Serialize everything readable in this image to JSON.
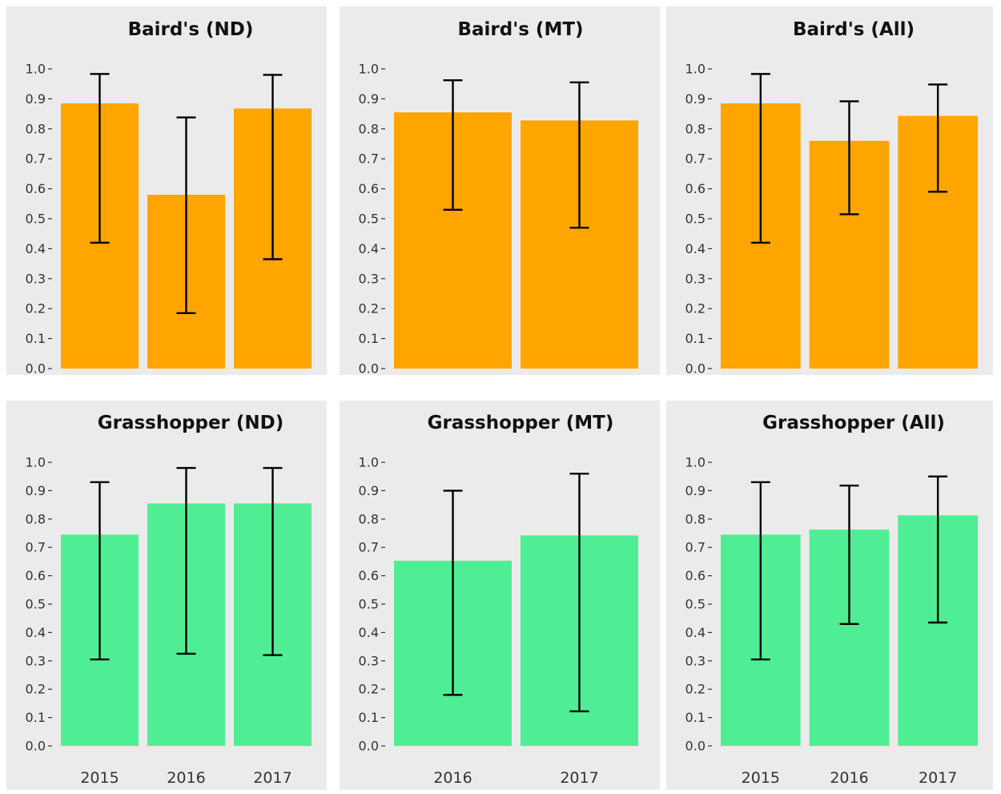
{
  "chart_data": [
    {
      "type": "bar",
      "title": "Baird's (ND)",
      "categories": [
        "2015",
        "2016",
        "2017"
      ],
      "values": [
        0.885,
        0.58,
        0.868
      ],
      "error_low": [
        0.42,
        0.185,
        0.365
      ],
      "error_high": [
        0.983,
        0.838,
        0.98
      ],
      "ylim": [
        0,
        1
      ],
      "yticks": [
        "0.0",
        "0.1",
        "0.2",
        "0.3",
        "0.4",
        "0.5",
        "0.6",
        "0.7",
        "0.8",
        "0.9",
        "1.0"
      ],
      "color": "#FFA500",
      "show_xticks": false,
      "grid": false
    },
    {
      "type": "bar",
      "title": "Baird's (MT)",
      "categories": [
        "2016",
        "2017"
      ],
      "values": [
        0.855,
        0.828
      ],
      "error_low": [
        0.53,
        0.47
      ],
      "error_high": [
        0.962,
        0.955
      ],
      "ylim": [
        0,
        1
      ],
      "yticks": [
        "0.0",
        "0.1",
        "0.2",
        "0.3",
        "0.4",
        "0.5",
        "0.6",
        "0.7",
        "0.8",
        "0.9",
        "1.0"
      ],
      "color": "#FFA500",
      "show_xticks": false,
      "grid": false
    },
    {
      "type": "bar",
      "title": "Baird's (All)",
      "categories": [
        "2015",
        "2016",
        "2017"
      ],
      "values": [
        0.885,
        0.76,
        0.843
      ],
      "error_low": [
        0.42,
        0.515,
        0.59
      ],
      "error_high": [
        0.983,
        0.892,
        0.948
      ],
      "ylim": [
        0,
        1
      ],
      "yticks": [
        "0.0",
        "0.1",
        "0.2",
        "0.3",
        "0.4",
        "0.5",
        "0.6",
        "0.7",
        "0.8",
        "0.9",
        "1.0"
      ],
      "color": "#FFA500",
      "show_xticks": false,
      "grid": false
    },
    {
      "type": "bar",
      "title": "Grasshopper (ND)",
      "categories": [
        "2015",
        "2016",
        "2017"
      ],
      "values": [
        0.745,
        0.855,
        0.855
      ],
      "error_low": [
        0.305,
        0.325,
        0.32
      ],
      "error_high": [
        0.93,
        0.98,
        0.98
      ],
      "ylim": [
        0,
        1
      ],
      "yticks": [
        "0.0",
        "0.1",
        "0.2",
        "0.3",
        "0.4",
        "0.5",
        "0.6",
        "0.7",
        "0.8",
        "0.9",
        "1.0"
      ],
      "color": "#50EE94",
      "show_xticks": true,
      "grid": false
    },
    {
      "type": "bar",
      "title": "Grasshopper (MT)",
      "categories": [
        "2016",
        "2017"
      ],
      "values": [
        0.653,
        0.742
      ],
      "error_low": [
        0.18,
        0.122
      ],
      "error_high": [
        0.9,
        0.96
      ],
      "ylim": [
        0,
        1
      ],
      "yticks": [
        "0.0",
        "0.1",
        "0.2",
        "0.3",
        "0.4",
        "0.5",
        "0.6",
        "0.7",
        "0.8",
        "0.9",
        "1.0"
      ],
      "color": "#50EE94",
      "show_xticks": true,
      "grid": false
    },
    {
      "type": "bar",
      "title": "Grasshopper (All)",
      "categories": [
        "2015",
        "2016",
        "2017"
      ],
      "values": [
        0.745,
        0.763,
        0.813
      ],
      "error_low": [
        0.305,
        0.43,
        0.435
      ],
      "error_high": [
        0.93,
        0.918,
        0.95
      ],
      "ylim": [
        0,
        1
      ],
      "yticks": [
        "0.0",
        "0.1",
        "0.2",
        "0.3",
        "0.4",
        "0.5",
        "0.6",
        "0.7",
        "0.8",
        "0.9",
        "1.0"
      ],
      "color": "#50EE94",
      "show_xticks": true,
      "grid": false
    }
  ],
  "colors": {
    "background": "#EBEBEB",
    "baird_bar": "#FFA500",
    "grasshopper_bar": "#50EE94",
    "error_bar": "#000000",
    "text": "#333333"
  }
}
